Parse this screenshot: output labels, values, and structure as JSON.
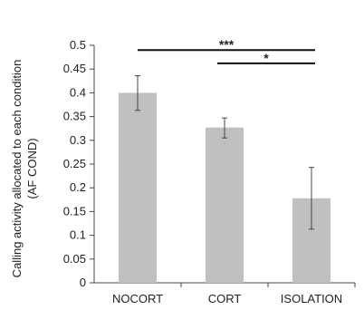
{
  "chart_data": {
    "type": "bar",
    "title": "",
    "xlabel": "",
    "ylabel_lines": [
      "Calling activity allocated to each condition",
      "(AF COND)"
    ],
    "categories": [
      "NOCORT",
      "CORT",
      "ISOLATION"
    ],
    "values": [
      0.4,
      0.327,
      0.178
    ],
    "error_low": [
      0.363,
      0.305,
      0.113
    ],
    "error_high": [
      0.436,
      0.347,
      0.243
    ],
    "ylim": [
      0,
      0.5
    ],
    "yticks": [
      "0",
      "0.05",
      "0.1",
      "0.15",
      "0.2",
      "0.25",
      "0.3",
      "0.35",
      "0.4",
      "0.45",
      "0.5"
    ],
    "grid": false,
    "legend": "none",
    "bar_color": "#c0c0c0",
    "significance": [
      {
        "from": "NOCORT",
        "to": "ISOLATION",
        "label": "***",
        "level": 0.49
      },
      {
        "from": "CORT",
        "to": "ISOLATION",
        "label": "*",
        "level": 0.462
      }
    ]
  }
}
